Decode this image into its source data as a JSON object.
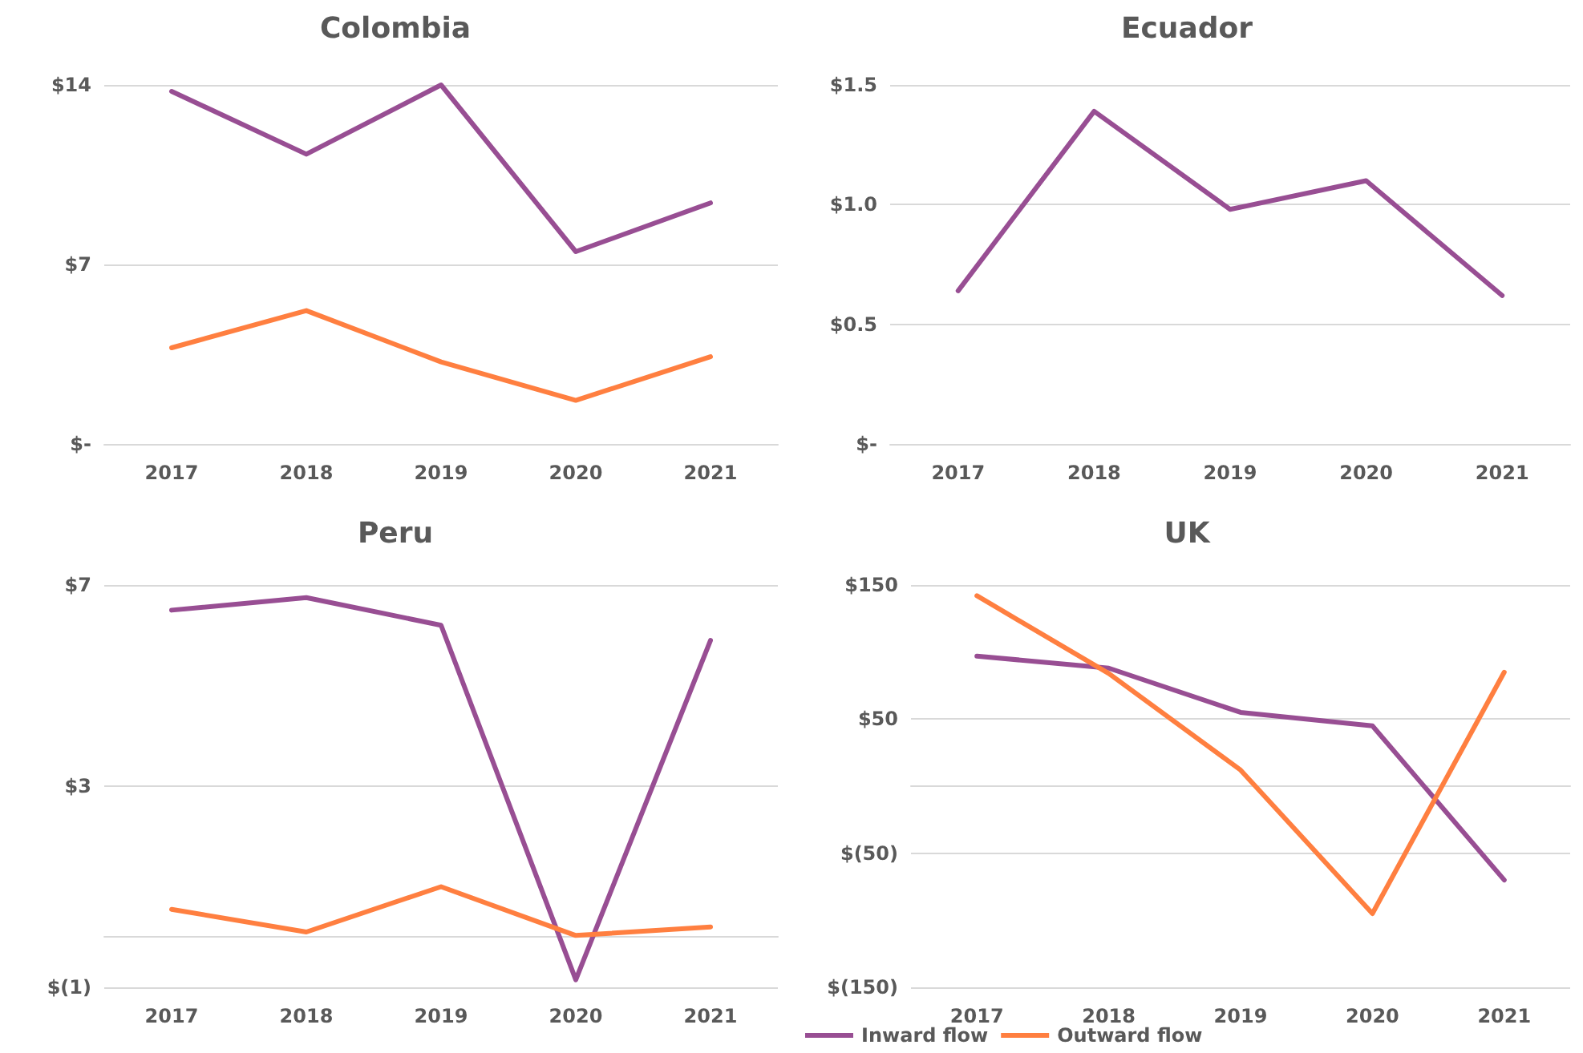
{
  "chart_data": [
    {
      "type": "line",
      "title": "Colombia",
      "categories": [
        "2017",
        "2018",
        "2019",
        "2020",
        "2021"
      ],
      "grid": "y",
      "ylim": [
        0,
        14
      ],
      "yticks": [
        {
          "value": 0,
          "label": "$-"
        },
        {
          "value": 7,
          "label": "$7"
        },
        {
          "value": 14,
          "label": "$14"
        }
      ],
      "series": [
        {
          "color": "#984e93",
          "values": [
            13.75,
            11.3,
            14.0,
            7.5,
            9.4
          ]
        },
        {
          "color": "#ff7f40",
          "values": [
            3.75,
            5.2,
            3.2,
            1.7,
            3.4
          ]
        }
      ]
    },
    {
      "type": "line",
      "title": "Ecuador",
      "categories": [
        "2017",
        "2018",
        "2019",
        "2020",
        "2021"
      ],
      "grid": "y",
      "ylim": [
        0,
        1.5
      ],
      "yticks": [
        {
          "value": 0,
          "label": "$-"
        },
        {
          "value": 0.5,
          "label": "$0.5"
        },
        {
          "value": 1.0,
          "label": "$1.0"
        },
        {
          "value": 1.5,
          "label": "$1.5"
        }
      ],
      "series": [
        {
          "color": "#984e93",
          "values": [
            0.64,
            1.39,
            0.98,
            1.1,
            0.62
          ]
        }
      ]
    },
    {
      "type": "line",
      "title": "Peru",
      "categories": [
        "2017",
        "2018",
        "2019",
        "2020",
        "2021"
      ],
      "grid": "y",
      "ylim": [
        -1,
        7
      ],
      "yticks": [
        {
          "value": -1,
          "label": "$(1)"
        },
        {
          "value": 3,
          "label": "$3"
        },
        {
          "value": 7,
          "label": "$7"
        }
      ],
      "series": [
        {
          "color": "#984e93",
          "values": [
            6.5,
            6.75,
            6.2,
            -0.85,
            5.9
          ]
        },
        {
          "color": "#ff7f40",
          "values": [
            0.55,
            0.1,
            1.0,
            0.03,
            0.2
          ]
        }
      ]
    },
    {
      "type": "line",
      "title": "UK",
      "categories": [
        "2017",
        "2018",
        "2019",
        "2020",
        "2021"
      ],
      "grid": "y",
      "legend": "bottom",
      "ylim": [
        -150,
        150
      ],
      "yticks": [
        {
          "value": -150,
          "label": "$(150)"
        },
        {
          "value": -50,
          "label": "$(50)"
        },
        {
          "value": 50,
          "label": "$50"
        },
        {
          "value": 150,
          "label": "$150"
        }
      ],
      "series": [
        {
          "name": "Inward flow",
          "color": "#984e93",
          "values": [
            97,
            88,
            55,
            45,
            -70
          ]
        },
        {
          "name": "Outward flow",
          "color": "#ff7f40",
          "values": [
            142,
            84,
            12,
            -95,
            85
          ]
        }
      ]
    }
  ]
}
